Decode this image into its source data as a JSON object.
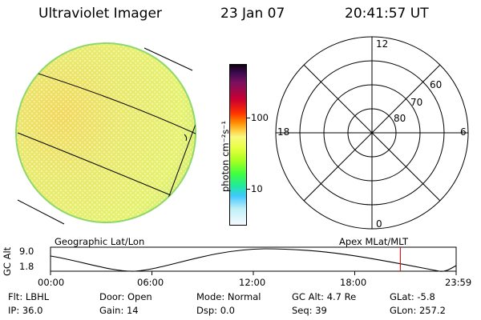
{
  "header": {
    "instrument": "Ultraviolet Imager",
    "date": "23 Jan 07",
    "time": "20:41:57 UT"
  },
  "colorbar": {
    "unit_label": "photon cm⁻²s⁻¹",
    "ticks": [
      {
        "label": "100",
        "value": 100
      },
      {
        "label": "10",
        "value": 10
      }
    ]
  },
  "polar_plot": {
    "mlt_labels": {
      "top": "12",
      "bottom": "0",
      "left": "18",
      "right": "6"
    },
    "lat_labels": [
      "60",
      "70",
      "80"
    ]
  },
  "coord_labels": {
    "left": "Geographic Lat/Lon",
    "right": "Apex MLat/MLT"
  },
  "altitude_plot": {
    "ylabel": "GC Alt",
    "y_ticks": [
      "9.0",
      "1.8"
    ],
    "y_values": [
      9.0,
      1.8
    ],
    "x_ticks": [
      "00:00",
      "06:00",
      "12:00",
      "18:00",
      "23:59"
    ],
    "current_time_hours": 20.7,
    "marker_color": "#cc2222"
  },
  "info": {
    "row1": [
      {
        "label": "Flt:",
        "value": "LBHL"
      },
      {
        "label": "Door:",
        "value": "Open"
      },
      {
        "label": "Mode:",
        "value": "Normal"
      },
      {
        "label": "GC Alt:",
        "value": "4.7 Re"
      },
      {
        "label": "GLat:",
        "value": "-5.8"
      }
    ],
    "row2": [
      {
        "label": "IP:",
        "value": "36.0"
      },
      {
        "label": "Gain:",
        "value": "14"
      },
      {
        "label": "Dsp:",
        "value": "0.0"
      },
      {
        "label": "Seq:",
        "value": "39"
      },
      {
        "label": "GLon:",
        "value": "257.2"
      }
    ]
  }
}
